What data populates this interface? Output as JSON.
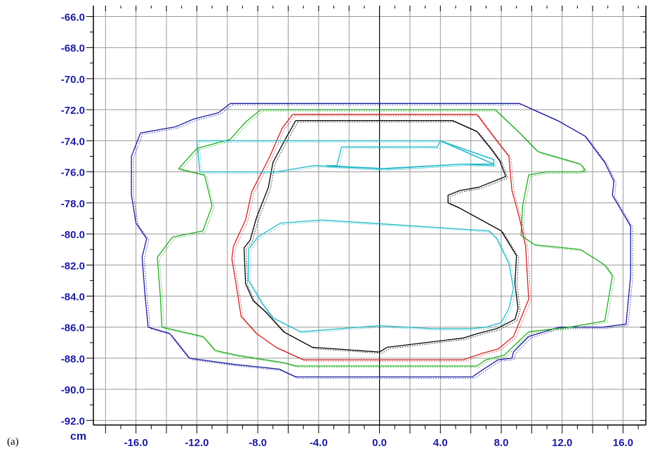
{
  "chart_data": {
    "type": "line",
    "panel_label": "(a)",
    "unit_label": "cm",
    "xlim": [
      -18.8,
      17.5
    ],
    "ylim": [
      -92.3,
      -65.3
    ],
    "x_ticks": [
      -16.0,
      -12.0,
      -8.0,
      -4.0,
      0.0,
      4.0,
      8.0,
      12.0,
      16.0
    ],
    "x_tick_labels": [
      "-16.0",
      "-12.0",
      "-8.0",
      "-4.0",
      "0.0",
      "4.0",
      "8.0",
      "12.0",
      "16.0"
    ],
    "y_ticks": [
      -66.0,
      -68.0,
      -70.0,
      -72.0,
      -74.0,
      -76.0,
      -78.0,
      -80.0,
      -82.0,
      -84.0,
      -86.0,
      -88.0,
      -90.0,
      -92.0
    ],
    "y_tick_labels": [
      "-66.0",
      "-68.0",
      "-70.0",
      "-72.0",
      "-74.0",
      "-76.0",
      "-78.0",
      "-80.0",
      "-82.0",
      "-84.0",
      "-86.0",
      "-88.0",
      "-90.0",
      "-92.0"
    ],
    "grid": true,
    "grid_step": 2,
    "colors": {
      "axis_text": "#1a1aa0",
      "grid": "#9a9a9a",
      "axes": "#000000",
      "blue": "#1a1aa0",
      "green": "#22aa22",
      "red": "#cc2222",
      "black": "#000000",
      "cyan": "#22b8c8"
    },
    "series": [
      {
        "color": "#1a1aa0",
        "x": [
          -9.8,
          9.2,
          11.7,
          13.5,
          14.8,
          15.4,
          15.3,
          16.5,
          16.5,
          16.2,
          14.7,
          12.8,
          11.8,
          9.8,
          8.8,
          8.7,
          7.8,
          7.0,
          6.1,
          -5.5,
          -6.6,
          -9.5,
          -12.5,
          -13.8,
          -15.2,
          -15.4,
          -15.6,
          -15.3,
          -16.0,
          -16.3,
          -16.3,
          -15.7,
          -13.4,
          -12.2,
          -10.6,
          -9.8
        ],
        "y": [
          -71.6,
          -71.6,
          -72.7,
          -73.7,
          -75.4,
          -76.6,
          -77.5,
          -79.5,
          -82.7,
          -85.8,
          -86.0,
          -86.0,
          -86.0,
          -86.6,
          -87.6,
          -88.0,
          -88.1,
          -88.6,
          -89.2,
          -89.2,
          -88.7,
          -88.4,
          -88.0,
          -86.4,
          -86.0,
          -84.0,
          -81.5,
          -80.3,
          -79.3,
          -77.5,
          -75.0,
          -73.5,
          -73.1,
          -72.6,
          -72.2,
          -71.6
        ]
      },
      {
        "color": "#22aa22",
        "x": [
          -7.8,
          7.6,
          9.2,
          10.4,
          13.2,
          13.5,
          13.2,
          11.0,
          9.8,
          9.4,
          9.3,
          10.2,
          13.2,
          14.8,
          15.3,
          14.8,
          12.5,
          9.8,
          8.2,
          7.0,
          6.4,
          -5.5,
          -6.2,
          -9.4,
          -10.8,
          -11.6,
          -14.3,
          -14.4,
          -14.6,
          -13.6,
          -11.6,
          -11.0,
          -11.5,
          -13.2,
          -12.0,
          -9.8,
          -8.8,
          -7.8
        ],
        "y": [
          -72.0,
          -72.0,
          -73.5,
          -74.7,
          -75.5,
          -75.9,
          -76.0,
          -76.0,
          -76.2,
          -78.2,
          -80.1,
          -80.7,
          -81.0,
          -82.0,
          -82.7,
          -85.6,
          -86.0,
          -86.3,
          -87.8,
          -88.1,
          -88.5,
          -88.5,
          -88.3,
          -87.8,
          -87.5,
          -86.6,
          -86.0,
          -84.0,
          -81.5,
          -80.2,
          -79.8,
          -78.2,
          -76.2,
          -75.8,
          -74.5,
          -73.9,
          -72.8,
          -72.0
        ]
      },
      {
        "color": "#cc2222",
        "x": [
          -5.7,
          6.4,
          7.7,
          8.5,
          8.7,
          9.2,
          9.6,
          9.8,
          8.8,
          7.8,
          6.7,
          5.5,
          -5.0,
          -6.8,
          -8.1,
          -9.1,
          -9.3,
          -9.7,
          -9.6,
          -8.8,
          -8.4,
          -7.2,
          -6.4,
          -5.7
        ],
        "y": [
          -72.3,
          -72.3,
          -74.0,
          -75.0,
          -77.2,
          -79.0,
          -80.8,
          -84.2,
          -86.6,
          -87.4,
          -87.7,
          -88.1,
          -88.1,
          -87.3,
          -86.4,
          -85.3,
          -84.0,
          -81.6,
          -80.8,
          -79.1,
          -77.3,
          -75.0,
          -73.2,
          -72.3
        ]
      },
      {
        "color": "#000000",
        "x": [
          -5.5,
          4.8,
          6.4,
          7.3,
          7.9,
          8.3,
          6.5,
          5.3,
          4.5,
          4.5,
          5.2,
          8.0,
          9.0,
          8.9,
          9.1,
          8.9,
          7.7,
          6.5,
          5.5,
          0.5,
          0.0,
          -4.4,
          -6.3,
          -7.5,
          -8.3,
          -8.8,
          -8.9,
          -8.5,
          -8.1,
          -7.3,
          -7.0,
          -6.3,
          -5.5
        ],
        "y": [
          -72.7,
          -72.7,
          -73.4,
          -74.5,
          -75.3,
          -76.3,
          -77.0,
          -77.2,
          -77.5,
          -78.0,
          -78.3,
          -79.8,
          -81.4,
          -83.2,
          -84.8,
          -85.5,
          -86.1,
          -86.4,
          -86.7,
          -87.3,
          -87.6,
          -87.3,
          -86.3,
          -85.0,
          -84.3,
          -83.2,
          -80.9,
          -80.4,
          -79.0,
          -77.0,
          -75.4,
          -74.1,
          -72.7
        ]
      },
      {
        "color": "#22b8c8",
        "x": [
          -12.0,
          4.0,
          6.8,
          7.5,
          7.5,
          5.5,
          0.0,
          -4.3,
          -6.8,
          -11.8,
          -12.0
        ],
        "y": [
          -74.0,
          -74.0,
          -75.2,
          -75.5,
          -75.5,
          -75.5,
          -75.8,
          -75.6,
          -76.0,
          -76.0,
          -74.0
        ]
      },
      {
        "color": "#22b8c8",
        "x": [
          -3.5,
          -2.8,
          -2.5,
          3.8,
          4.0,
          7.5,
          7.5,
          5.5,
          0.5,
          -3.5
        ],
        "y": [
          -75.6,
          -75.6,
          -74.4,
          -74.4,
          -74.0,
          -75.2,
          -75.6,
          -75.5,
          -75.8,
          -75.6
        ]
      },
      {
        "color": "#22b8c8",
        "x": [
          -6.5,
          -3.8,
          7.2,
          7.7,
          8.5,
          8.8,
          8.5,
          8.0,
          7.0,
          6.0,
          3.5,
          0.0,
          -5.2,
          -7.0,
          -7.7,
          -8.6,
          -8.6,
          -8.0,
          -6.5
        ],
        "y": [
          -79.3,
          -79.1,
          -79.8,
          -80.3,
          -81.9,
          -83.5,
          -84.8,
          -85.7,
          -86.0,
          -86.1,
          -86.1,
          -85.9,
          -86.3,
          -85.4,
          -84.5,
          -83.0,
          -81.0,
          -80.2,
          -79.3
        ]
      }
    ]
  }
}
